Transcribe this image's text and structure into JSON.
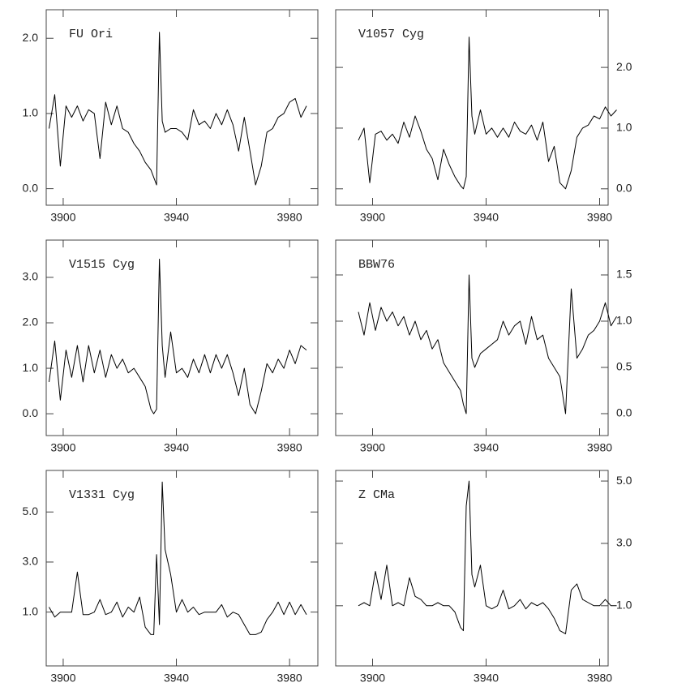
{
  "chart_data": [
    {
      "type": "line",
      "title": "FU Ori",
      "color": "#000000",
      "yaxis_position": "left",
      "x": [
        3895,
        3897,
        3899,
        3901,
        3903,
        3905,
        3907,
        3909,
        3911,
        3913,
        3915,
        3917,
        3919,
        3921,
        3923,
        3925,
        3927,
        3929,
        3931,
        3932,
        3933,
        3934,
        3935,
        3936,
        3938,
        3940,
        3942,
        3944,
        3946,
        3948,
        3950,
        3952,
        3954,
        3956,
        3958,
        3960,
        3962,
        3964,
        3966,
        3968,
        3970,
        3972,
        3974,
        3976,
        3978,
        3980,
        3982,
        3984,
        3986
      ],
      "values": [
        0.8,
        1.25,
        0.3,
        1.1,
        0.95,
        1.1,
        0.9,
        1.05,
        1.0,
        0.4,
        1.15,
        0.85,
        1.1,
        0.8,
        0.75,
        0.6,
        0.5,
        0.35,
        0.25,
        0.15,
        0.05,
        2.08,
        0.9,
        0.75,
        0.8,
        0.8,
        0.75,
        0.65,
        1.05,
        0.85,
        0.9,
        0.8,
        1.0,
        0.85,
        1.05,
        0.85,
        0.5,
        0.95,
        0.5,
        0.05,
        0.3,
        0.75,
        0.8,
        0.95,
        1.0,
        1.15,
        1.2,
        0.95,
        1.1
      ],
      "xlim": [
        3894,
        3990
      ],
      "ylim": [
        -0.22,
        2.38
      ],
      "xticks": [
        3900,
        3940,
        3980
      ],
      "yticks": [
        {
          "value": 0,
          "label": "0.0"
        },
        {
          "value": 1,
          "label": "1.0"
        },
        {
          "value": 2,
          "label": "2.0"
        }
      ]
    },
    {
      "type": "line",
      "title": "V1057 Cyg",
      "color": "#000000",
      "yaxis_position": "right",
      "x": [
        3895,
        3897,
        3899,
        3901,
        3903,
        3905,
        3907,
        3909,
        3911,
        3913,
        3915,
        3917,
        3919,
        3921,
        3923,
        3925,
        3927,
        3929,
        3931,
        3932,
        3933,
        3934,
        3935,
        3936,
        3938,
        3940,
        3942,
        3944,
        3946,
        3948,
        3950,
        3952,
        3954,
        3956,
        3958,
        3960,
        3962,
        3964,
        3966,
        3968,
        3970,
        3972,
        3974,
        3976,
        3978,
        3980,
        3982,
        3984,
        3986
      ],
      "values": [
        0.8,
        1.0,
        0.1,
        0.9,
        0.95,
        0.8,
        0.9,
        0.75,
        1.1,
        0.85,
        1.2,
        0.95,
        0.65,
        0.5,
        0.15,
        0.65,
        0.4,
        0.2,
        0.05,
        0.0,
        0.2,
        2.5,
        1.2,
        0.9,
        1.3,
        0.9,
        1.0,
        0.85,
        1.0,
        0.85,
        1.1,
        0.95,
        0.9,
        1.05,
        0.8,
        1.1,
        0.45,
        0.7,
        0.1,
        0.0,
        0.3,
        0.85,
        1.0,
        1.05,
        1.2,
        1.15,
        1.35,
        1.2,
        1.3
      ],
      "xlim": [
        3887,
        3983
      ],
      "ylim": [
        -0.27,
        2.95
      ],
      "xticks": [
        3900,
        3940,
        3980
      ],
      "yticks": [
        {
          "value": 0,
          "label": "0.0"
        },
        {
          "value": 1,
          "label": "1.0"
        },
        {
          "value": 2,
          "label": "2.0"
        }
      ]
    },
    {
      "type": "line",
      "title": "V1515 Cyg",
      "color": "#000000",
      "yaxis_position": "left",
      "x": [
        3895,
        3897,
        3899,
        3901,
        3903,
        3905,
        3907,
        3909,
        3911,
        3913,
        3915,
        3917,
        3919,
        3921,
        3923,
        3925,
        3927,
        3929,
        3931,
        3932,
        3933,
        3934,
        3935,
        3936,
        3938,
        3940,
        3942,
        3944,
        3946,
        3948,
        3950,
        3952,
        3954,
        3956,
        3958,
        3960,
        3962,
        3964,
        3966,
        3968,
        3970,
        3972,
        3974,
        3976,
        3978,
        3980,
        3982,
        3984,
        3986
      ],
      "values": [
        0.7,
        1.6,
        0.3,
        1.4,
        0.8,
        1.5,
        0.7,
        1.5,
        0.9,
        1.4,
        0.8,
        1.3,
        1.0,
        1.2,
        0.9,
        1.0,
        0.8,
        0.6,
        0.1,
        0.0,
        0.1,
        3.4,
        1.5,
        0.8,
        1.8,
        0.9,
        1.0,
        0.8,
        1.2,
        0.9,
        1.3,
        0.9,
        1.3,
        1.0,
        1.3,
        0.9,
        0.4,
        1.0,
        0.2,
        0.0,
        0.5,
        1.1,
        0.9,
        1.2,
        1.0,
        1.4,
        1.1,
        1.5,
        1.4
      ],
      "xlim": [
        3894,
        3990
      ],
      "ylim": [
        -0.48,
        3.82
      ],
      "xticks": [
        3900,
        3940,
        3980
      ],
      "yticks": [
        {
          "value": 0,
          "label": "0.0"
        },
        {
          "value": 1,
          "label": "1.0"
        },
        {
          "value": 2,
          "label": "2.0"
        },
        {
          "value": 3,
          "label": "3.0"
        }
      ]
    },
    {
      "type": "line",
      "title": "BBW76",
      "color": "#000000",
      "yaxis_position": "right",
      "x": [
        3895,
        3897,
        3899,
        3901,
        3903,
        3905,
        3907,
        3909,
        3911,
        3913,
        3915,
        3917,
        3919,
        3921,
        3923,
        3925,
        3927,
        3929,
        3931,
        3932,
        3933,
        3934,
        3935,
        3936,
        3938,
        3940,
        3942,
        3944,
        3946,
        3948,
        3950,
        3952,
        3954,
        3956,
        3958,
        3960,
        3962,
        3964,
        3966,
        3968,
        3970,
        3972,
        3974,
        3976,
        3978,
        3980,
        3982,
        3984,
        3986
      ],
      "values": [
        1.1,
        0.85,
        1.2,
        0.9,
        1.15,
        1.0,
        1.1,
        0.95,
        1.05,
        0.85,
        1.0,
        0.8,
        0.9,
        0.7,
        0.8,
        0.55,
        0.45,
        0.35,
        0.25,
        0.1,
        0.0,
        1.5,
        0.6,
        0.5,
        0.65,
        0.7,
        0.75,
        0.8,
        1.0,
        0.85,
        0.95,
        1.0,
        0.75,
        1.05,
        0.8,
        0.85,
        0.6,
        0.5,
        0.4,
        0.0,
        1.35,
        0.6,
        0.7,
        0.85,
        0.9,
        1.0,
        1.2,
        0.95,
        1.05
      ],
      "xlim": [
        3887,
        3983
      ],
      "ylim": [
        -0.237,
        1.877
      ],
      "xticks": [
        3900,
        3940,
        3980
      ],
      "yticks": [
        {
          "value": 0,
          "label": "0.0"
        },
        0.5,
        {
          "value": 1,
          "label": "1.0"
        },
        1.5
      ]
    },
    {
      "type": "line",
      "title": "V1331 Cyg",
      "color": "#000000",
      "yaxis_position": "left",
      "x": [
        3895,
        3897,
        3899,
        3901,
        3903,
        3905,
        3907,
        3909,
        3911,
        3913,
        3915,
        3917,
        3919,
        3921,
        3923,
        3925,
        3927,
        3929,
        3931,
        3932,
        3933,
        3934,
        3935,
        3936,
        3938,
        3940,
        3942,
        3944,
        3946,
        3948,
        3950,
        3952,
        3954,
        3956,
        3958,
        3960,
        3962,
        3964,
        3966,
        3968,
        3970,
        3972,
        3974,
        3976,
        3978,
        3980,
        3982,
        3984,
        3986
      ],
      "values": [
        1.2,
        0.8,
        1.0,
        1.0,
        1.0,
        2.6,
        0.9,
        0.9,
        1.0,
        1.5,
        0.9,
        1.0,
        1.4,
        0.8,
        1.2,
        1.0,
        1.6,
        0.4,
        0.1,
        0.1,
        3.3,
        0.5,
        6.2,
        3.5,
        2.5,
        1.0,
        1.5,
        1.0,
        1.2,
        0.9,
        1.0,
        1.0,
        1.0,
        1.3,
        0.8,
        1.0,
        0.9,
        0.5,
        0.1,
        0.1,
        0.2,
        0.7,
        1.0,
        1.4,
        0.9,
        1.4,
        0.9,
        1.3,
        0.9
      ],
      "xlim": [
        3894,
        3990
      ],
      "ylim": [
        -1.15,
        6.66
      ],
      "xticks": [
        3900,
        3940,
        3980
      ],
      "yticks": [
        {
          "value": 1,
          "label": "1.0"
        },
        {
          "value": 3,
          "label": "3.0"
        },
        {
          "value": 5,
          "label": "5.0"
        }
      ]
    },
    {
      "type": "line",
      "title": "Z CMa",
      "color": "#000000",
      "yaxis_position": "right",
      "x": [
        3895,
        3897,
        3899,
        3901,
        3903,
        3905,
        3907,
        3909,
        3911,
        3913,
        3915,
        3917,
        3919,
        3921,
        3923,
        3925,
        3927,
        3929,
        3931,
        3932,
        3933,
        3934,
        3935,
        3936,
        3938,
        3940,
        3942,
        3944,
        3946,
        3948,
        3950,
        3952,
        3954,
        3956,
        3958,
        3960,
        3962,
        3964,
        3966,
        3968,
        3970,
        3972,
        3974,
        3976,
        3978,
        3980,
        3982,
        3984,
        3986
      ],
      "values": [
        1.0,
        1.1,
        1.0,
        2.1,
        1.2,
        2.3,
        1.0,
        1.1,
        1.0,
        1.9,
        1.3,
        1.2,
        1.0,
        1.0,
        1.1,
        1.0,
        1.0,
        0.8,
        0.3,
        0.2,
        4.2,
        5.0,
        2.0,
        1.6,
        2.3,
        1.0,
        0.9,
        1.0,
        1.5,
        0.9,
        1.0,
        1.2,
        0.9,
        1.1,
        1.0,
        1.1,
        0.9,
        0.6,
        0.2,
        0.1,
        1.5,
        1.7,
        1.2,
        1.1,
        1.0,
        1.0,
        1.2,
        1.0,
        1.0
      ],
      "xlim": [
        3887,
        3983
      ],
      "ylim": [
        -0.93,
        5.34
      ],
      "xticks": [
        3900,
        3940,
        3980
      ],
      "yticks": [
        {
          "value": 1,
          "label": "1.0"
        },
        {
          "value": 3,
          "label": "3.0"
        },
        {
          "value": 5,
          "label": "5.0"
        }
      ]
    }
  ]
}
